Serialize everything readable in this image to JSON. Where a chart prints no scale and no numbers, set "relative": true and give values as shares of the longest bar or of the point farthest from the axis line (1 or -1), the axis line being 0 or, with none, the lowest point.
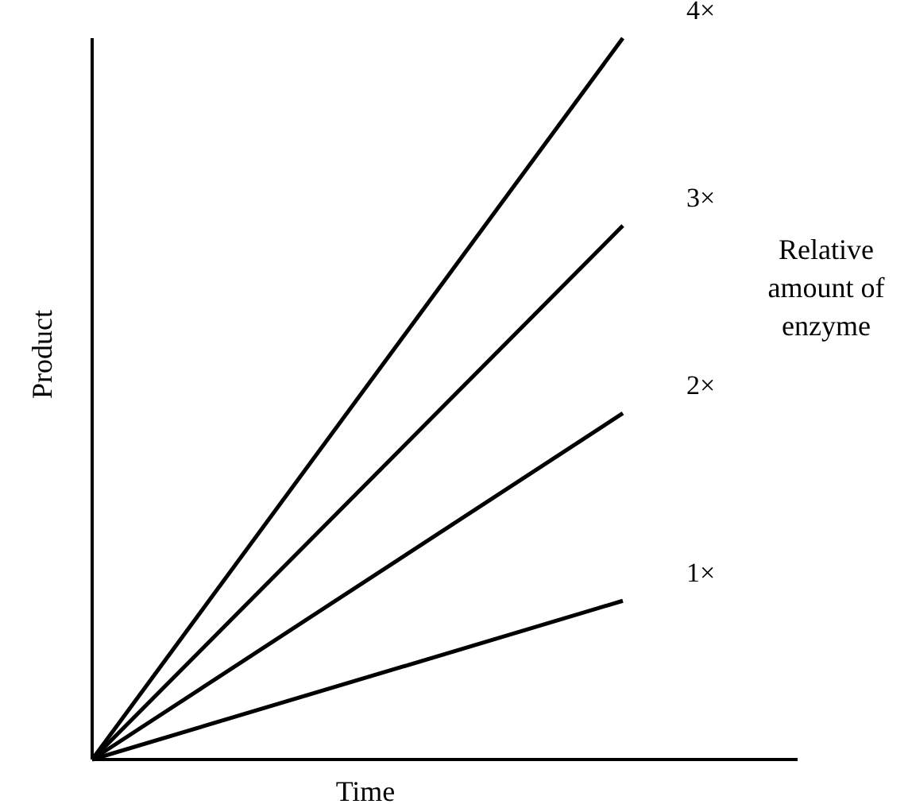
{
  "chart_data": {
    "type": "line",
    "relative": true,
    "xlabel": "Time",
    "ylabel": "Product",
    "legend_title": "Relative amount of enzyme",
    "legend": false,
    "tick_labels": false,
    "marker": "none",
    "line_style": "solid",
    "categories": [
      null,
      null
    ],
    "series": [
      {
        "name": "4×",
        "color": "#000000",
        "values": [
          0,
          1
        ]
      },
      {
        "name": "3×",
        "color": "#000000",
        "values": [
          0,
          0.74
        ]
      },
      {
        "name": "2×",
        "color": "#000000",
        "values": [
          0,
          0.48
        ]
      },
      {
        "name": "1×",
        "color": "#000000",
        "values": [
          0,
          0.22
        ]
      }
    ]
  }
}
